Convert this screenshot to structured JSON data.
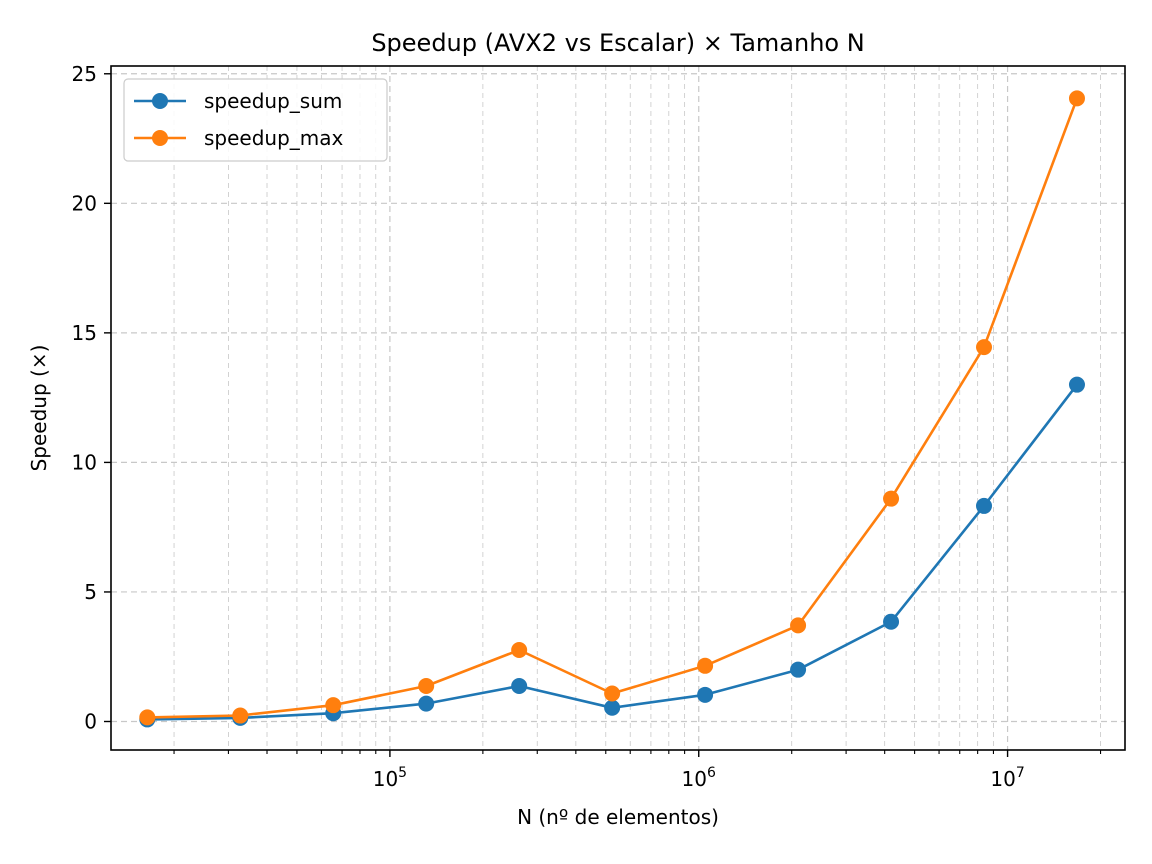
{
  "chart_data": {
    "type": "line",
    "title": "Speedup (AVX2 vs Escalar) × Tamanho N",
    "xlabel": "N (nº de elementos)",
    "ylabel": "Speedup (×)",
    "xscale": "log",
    "xlim": [
      12500,
      24000000
    ],
    "ylim": [
      -1.1,
      25.3
    ],
    "yticks": [
      0,
      5,
      10,
      15,
      20,
      25
    ],
    "xticks": [
      {
        "value": 100000,
        "base": "10",
        "exp": "5"
      },
      {
        "value": 1000000,
        "base": "10",
        "exp": "6"
      },
      {
        "value": 10000000,
        "base": "10",
        "exp": "7"
      }
    ],
    "grid": true,
    "legend": "top-left",
    "x": [
      16384,
      32768,
      65536,
      131072,
      262144,
      524288,
      1048576,
      2097152,
      4194304,
      8388608,
      16777216
    ],
    "series": [
      {
        "name": "speedup_sum",
        "color": "#1f77b4",
        "values": [
          0.08,
          0.14,
          0.32,
          0.69,
          1.37,
          0.53,
          1.03,
          2.0,
          3.85,
          8.32,
          13.0
        ]
      },
      {
        "name": "speedup_max",
        "color": "#ff7f0e",
        "values": [
          0.16,
          0.23,
          0.63,
          1.37,
          2.76,
          1.08,
          2.15,
          3.71,
          8.6,
          14.45,
          24.05
        ]
      }
    ]
  }
}
